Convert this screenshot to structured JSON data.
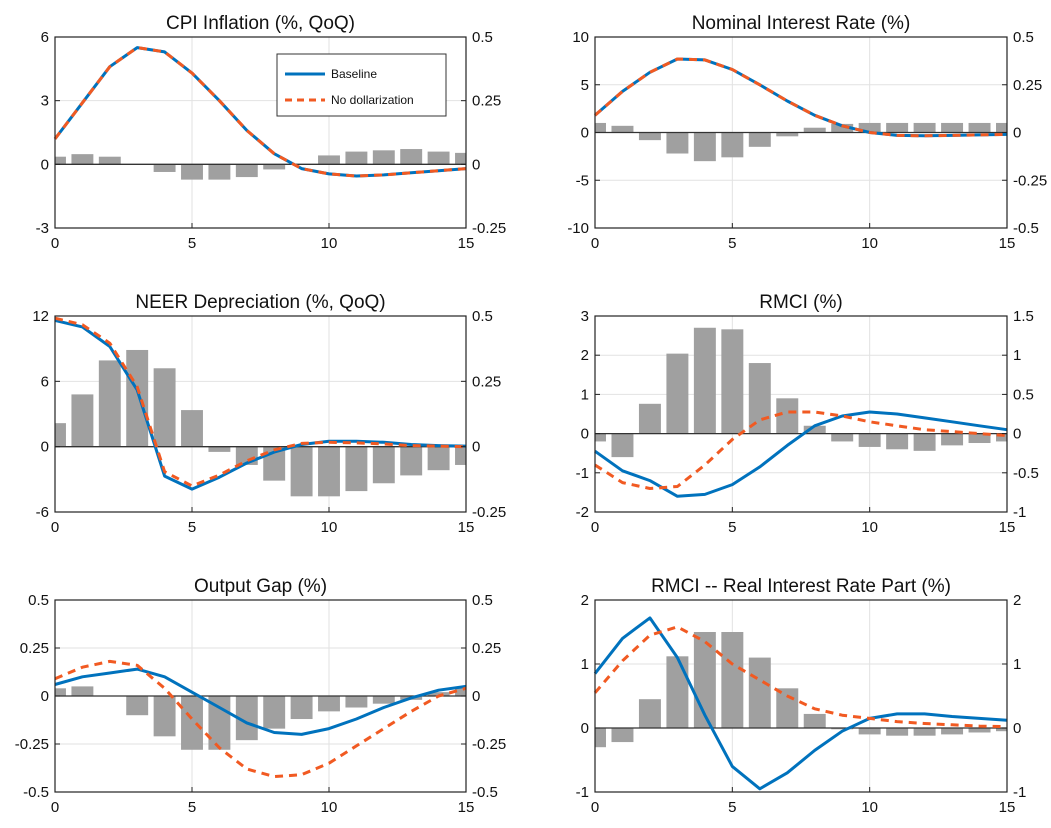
{
  "colors": {
    "baseline": "#0072BD",
    "no_dollarization": "#F15A22",
    "bars": "#a0a0a0",
    "grid": "#e2e2e2",
    "axis": "#222222"
  },
  "chart_data": [
    {
      "type": "line",
      "title": "CPI Inflation (%, QoQ)",
      "x": [
        0,
        1,
        2,
        3,
        4,
        5,
        6,
        7,
        8,
        9,
        10,
        11,
        12,
        13,
        14,
        15
      ],
      "xlim": [
        0,
        15
      ],
      "xticks": [
        0,
        5,
        10,
        15
      ],
      "ylim": [
        -3,
        6
      ],
      "yticks": [
        -3,
        0,
        3,
        6
      ],
      "ytick_labels": [
        "-3",
        "0",
        "3",
        "6"
      ],
      "y2lim": [
        -0.25,
        0.5
      ],
      "y2ticks": [
        -0.25,
        0,
        0.25,
        0.5
      ],
      "y2tick_labels": [
        "-0.25",
        "0",
        "0.25",
        "0.5"
      ],
      "series": [
        {
          "name": "Baseline",
          "values": [
            1.2,
            2.9,
            4.6,
            5.5,
            5.3,
            4.3,
            3.0,
            1.6,
            0.5,
            -0.2,
            -0.45,
            -0.55,
            -0.5,
            -0.4,
            -0.3,
            -0.2
          ]
        },
        {
          "name": "No dollarization",
          "values": [
            1.2,
            2.9,
            4.6,
            5.5,
            5.3,
            4.3,
            3.0,
            1.6,
            0.5,
            -0.2,
            -0.45,
            -0.55,
            -0.5,
            -0.4,
            -0.3,
            -0.2
          ]
        }
      ],
      "bars": [
        0.03,
        0.04,
        0.03,
        0.0,
        -0.03,
        -0.06,
        -0.06,
        -0.05,
        -0.02,
        0.0,
        0.035,
        0.05,
        0.055,
        0.06,
        0.05,
        0.045
      ],
      "legend": {
        "entries": [
          "Baseline",
          "No dollarization"
        ],
        "position": "top-right"
      }
    },
    {
      "type": "line",
      "title": "Nominal Interest Rate (%)",
      "x": [
        0,
        1,
        2,
        3,
        4,
        5,
        6,
        7,
        8,
        9,
        10,
        11,
        12,
        13,
        14,
        15
      ],
      "xlim": [
        0,
        15
      ],
      "xticks": [
        0,
        5,
        10,
        15
      ],
      "ylim": [
        -10,
        10
      ],
      "yticks": [
        -10,
        -5,
        0,
        5,
        10
      ],
      "ytick_labels": [
        "-10",
        "-5",
        "0",
        "5",
        "10"
      ],
      "y2lim": [
        -0.5,
        0.5
      ],
      "y2ticks": [
        -0.5,
        -0.25,
        0,
        0.25,
        0.5
      ],
      "y2tick_labels": [
        "-0.5",
        "-0.25",
        "0",
        "0.25",
        "0.5"
      ],
      "series": [
        {
          "name": "Baseline",
          "values": [
            1.8,
            4.3,
            6.3,
            7.7,
            7.6,
            6.6,
            5.0,
            3.3,
            1.8,
            0.7,
            0.0,
            -0.3,
            -0.35,
            -0.3,
            -0.25,
            -0.2
          ]
        },
        {
          "name": "No dollarization",
          "values": [
            1.8,
            4.3,
            6.3,
            7.7,
            7.6,
            6.6,
            5.0,
            3.3,
            1.8,
            0.7,
            0.0,
            -0.3,
            -0.35,
            -0.3,
            -0.25,
            -0.2
          ]
        }
      ],
      "bars": [
        0.05,
        0.035,
        -0.04,
        -0.11,
        -0.15,
        -0.13,
        -0.075,
        -0.02,
        0.025,
        0.045,
        0.05,
        0.05,
        0.05,
        0.05,
        0.05,
        0.05
      ]
    },
    {
      "type": "line",
      "title": "NEER Depreciation (%, QoQ)",
      "x": [
        0,
        1,
        2,
        3,
        4,
        5,
        6,
        7,
        8,
        9,
        10,
        11,
        12,
        13,
        14,
        15
      ],
      "xlim": [
        0,
        15
      ],
      "xticks": [
        0,
        5,
        10,
        15
      ],
      "ylim": [
        -6,
        12
      ],
      "yticks": [
        -6,
        0,
        6,
        12
      ],
      "ytick_labels": [
        "-6",
        "0",
        "6",
        "12"
      ],
      "y2lim": [
        -0.25,
        0.5
      ],
      "y2ticks": [
        -0.25,
        0,
        0.25,
        0.5
      ],
      "y2tick_labels": [
        "-0.25",
        "0",
        "0.25",
        "0.5"
      ],
      "series": [
        {
          "name": "Baseline",
          "values": [
            11.6,
            11.0,
            9.2,
            5.2,
            -2.7,
            -3.9,
            -2.8,
            -1.5,
            -0.5,
            0.2,
            0.5,
            0.5,
            0.4,
            0.2,
            0.1,
            0.05
          ]
        },
        {
          "name": "No dollarization",
          "values": [
            11.8,
            11.2,
            9.5,
            5.5,
            -2.3,
            -3.6,
            -2.6,
            -1.3,
            -0.3,
            0.3,
            0.4,
            0.35,
            0.25,
            0.1,
            0.05,
            0.0
          ]
        }
      ],
      "bars": [
        0.09,
        0.2,
        0.33,
        0.37,
        0.3,
        0.14,
        -0.02,
        -0.07,
        -0.13,
        -0.19,
        -0.19,
        -0.17,
        -0.14,
        -0.11,
        -0.09,
        -0.07
      ]
    },
    {
      "type": "line",
      "title": "RMCI (%)",
      "x": [
        0,
        1,
        2,
        3,
        4,
        5,
        6,
        7,
        8,
        9,
        10,
        11,
        12,
        13,
        14,
        15
      ],
      "xlim": [
        0,
        15
      ],
      "xticks": [
        0,
        5,
        10,
        15
      ],
      "ylim": [
        -2,
        3
      ],
      "yticks": [
        -2,
        -1,
        0,
        1,
        2,
        3
      ],
      "ytick_labels": [
        "-2",
        "-1",
        "0",
        "1",
        "2",
        "3"
      ],
      "y2lim": [
        -1,
        1.5
      ],
      "y2ticks": [
        -1,
        -0.5,
        0,
        0.5,
        1,
        1.5
      ],
      "y2tick_labels": [
        "-1",
        "-0.5",
        "0",
        "0.5",
        "1",
        "1.5"
      ],
      "series": [
        {
          "name": "Baseline",
          "values": [
            -0.45,
            -0.95,
            -1.2,
            -1.6,
            -1.55,
            -1.3,
            -0.85,
            -0.3,
            0.2,
            0.45,
            0.55,
            0.5,
            0.4,
            0.3,
            0.2,
            0.1
          ]
        },
        {
          "name": "No dollarization",
          "values": [
            -0.8,
            -1.25,
            -1.4,
            -1.35,
            -0.8,
            -0.15,
            0.35,
            0.55,
            0.55,
            0.45,
            0.3,
            0.2,
            0.1,
            0.05,
            0.0,
            -0.05
          ]
        }
      ],
      "bars": [
        -0.1,
        -0.3,
        0.38,
        1.02,
        1.35,
        1.33,
        0.9,
        0.45,
        0.1,
        -0.1,
        -0.17,
        -0.2,
        -0.22,
        -0.15,
        -0.12,
        -0.1
      ]
    },
    {
      "type": "line",
      "title": "Output Gap (%)",
      "x": [
        0,
        1,
        2,
        3,
        4,
        5,
        6,
        7,
        8,
        9,
        10,
        11,
        12,
        13,
        14,
        15
      ],
      "xlim": [
        0,
        15
      ],
      "xticks": [
        0,
        5,
        10,
        15
      ],
      "ylim": [
        -0.5,
        0.5
      ],
      "yticks": [
        -0.5,
        -0.25,
        0,
        0.25,
        0.5
      ],
      "ytick_labels": [
        "-0.5",
        "-0.25",
        "0",
        "0.25",
        "0.5"
      ],
      "y2lim": [
        -0.5,
        0.5
      ],
      "y2ticks": [
        -0.5,
        -0.25,
        0,
        0.25,
        0.5
      ],
      "y2tick_labels": [
        "-0.5",
        "-0.25",
        "0",
        "0.25",
        "0.5"
      ],
      "series": [
        {
          "name": "Baseline",
          "values": [
            0.06,
            0.1,
            0.12,
            0.14,
            0.1,
            0.02,
            -0.06,
            -0.14,
            -0.19,
            -0.2,
            -0.17,
            -0.12,
            -0.06,
            -0.01,
            0.03,
            0.05
          ]
        },
        {
          "name": "No dollarization",
          "values": [
            0.09,
            0.15,
            0.18,
            0.16,
            0.04,
            -0.12,
            -0.27,
            -0.38,
            -0.42,
            -0.41,
            -0.35,
            -0.26,
            -0.17,
            -0.08,
            0.0,
            0.04
          ]
        }
      ],
      "bars": [
        0.04,
        0.05,
        0.0,
        -0.1,
        -0.21,
        -0.28,
        -0.28,
        -0.23,
        -0.17,
        -0.12,
        -0.08,
        -0.06,
        -0.04,
        -0.02,
        0.02,
        0.04
      ]
    },
    {
      "type": "line",
      "title": "RMCI -- Real Interest Rate Part (%)",
      "x": [
        0,
        1,
        2,
        3,
        4,
        5,
        6,
        7,
        8,
        9,
        10,
        11,
        12,
        13,
        14,
        15
      ],
      "xlim": [
        0,
        15
      ],
      "xticks": [
        0,
        5,
        10,
        15
      ],
      "ylim": [
        -1,
        2
      ],
      "yticks": [
        -1,
        0,
        1,
        2
      ],
      "ytick_labels": [
        "-1",
        "0",
        "1",
        "2"
      ],
      "y2lim": [
        -1,
        2
      ],
      "y2ticks": [
        -1,
        0,
        1,
        2
      ],
      "y2tick_labels": [
        "-1",
        "0",
        "1",
        "2"
      ],
      "series": [
        {
          "name": "Baseline",
          "values": [
            0.85,
            1.4,
            1.72,
            1.1,
            0.2,
            -0.6,
            -0.95,
            -0.7,
            -0.35,
            -0.05,
            0.15,
            0.22,
            0.22,
            0.18,
            0.15,
            0.12
          ]
        },
        {
          "name": "No dollarization",
          "values": [
            0.55,
            1.05,
            1.45,
            1.58,
            1.35,
            1.0,
            0.75,
            0.5,
            0.3,
            0.2,
            0.15,
            0.1,
            0.07,
            0.05,
            0.03,
            0.02
          ]
        }
      ],
      "bars": [
        -0.3,
        -0.22,
        0.45,
        1.12,
        1.5,
        1.5,
        1.1,
        0.62,
        0.22,
        -0.02,
        -0.1,
        -0.12,
        -0.12,
        -0.1,
        -0.07,
        -0.05
      ]
    }
  ]
}
